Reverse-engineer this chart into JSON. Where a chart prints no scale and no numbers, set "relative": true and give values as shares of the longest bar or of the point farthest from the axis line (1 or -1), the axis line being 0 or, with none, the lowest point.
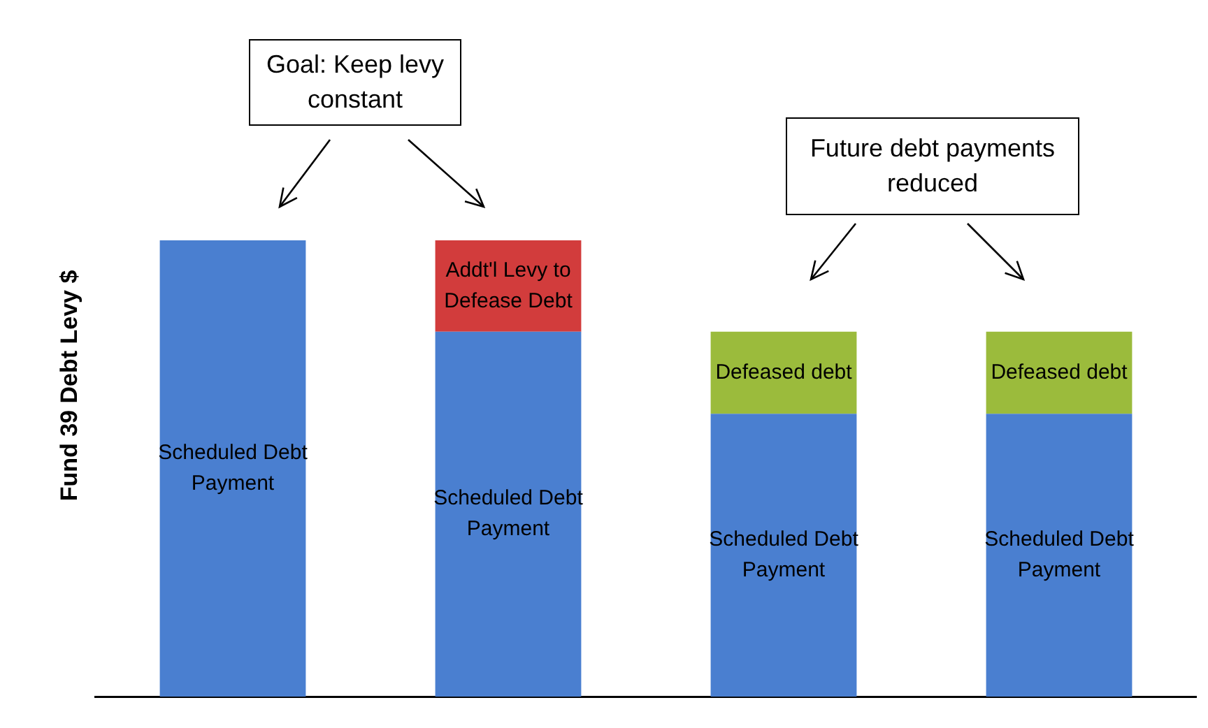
{
  "chart_data": {
    "type": "bar",
    "relative": true,
    "stacked": true,
    "ylabel": "Fund 39 Debt Levy $",
    "categories": [
      null,
      null,
      null,
      null
    ],
    "series": [
      {
        "name": "Scheduled Debt Payment",
        "color": "#4a7fd0",
        "values": [
          1,
          0.8,
          0.62,
          0.62
        ]
      },
      {
        "name": "Addt'l Levy to Defease Debt",
        "color": "#d23c3c",
        "values": [
          null,
          0.2,
          null,
          null
        ]
      },
      {
        "name": "Defeased debt",
        "color": "#9bbb3c",
        "values": [
          null,
          null,
          0.18,
          0.18
        ]
      }
    ],
    "annotations": [
      "Goal: Keep levy constant",
      "Future debt payments reduced"
    ],
    "legend": false,
    "grid": false
  }
}
